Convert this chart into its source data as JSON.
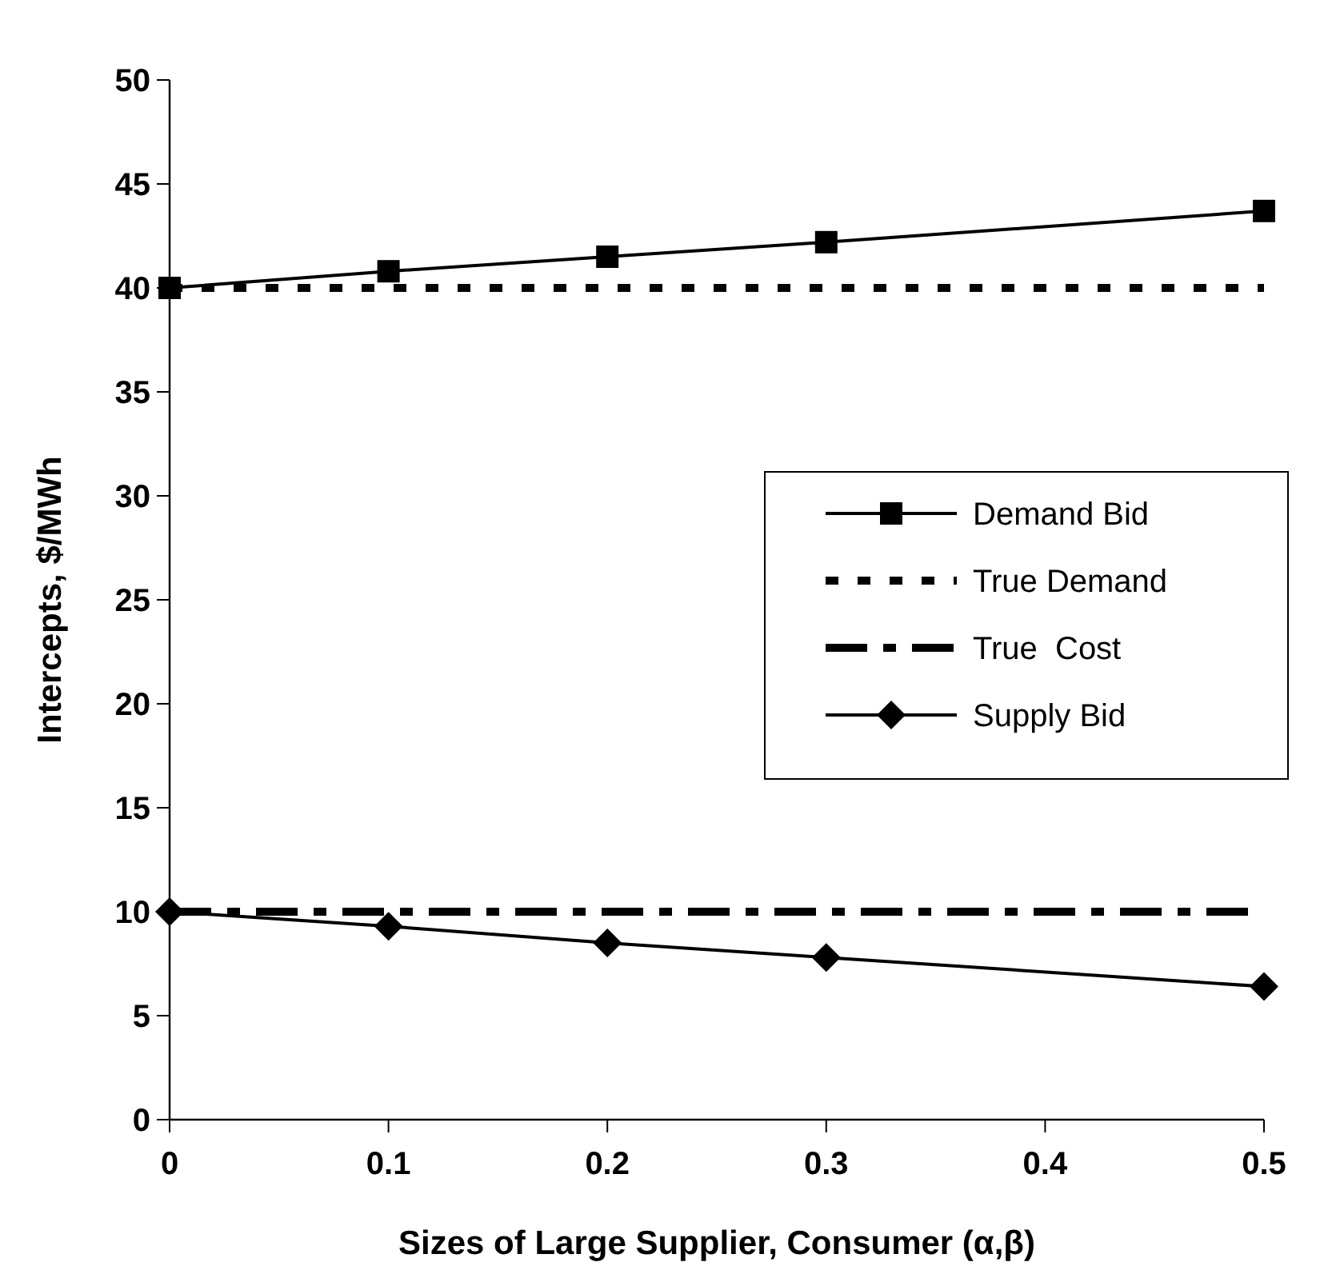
{
  "chart_data": {
    "type": "line",
    "xlabel": "Sizes of Large Supplier, Consumer (α,β)",
    "ylabel": "Intercepts, $/MWh",
    "xlim": [
      0,
      0.5
    ],
    "xticks": [
      0,
      0.1,
      0.2,
      0.3,
      0.4,
      0.5
    ],
    "ylim": [
      0,
      50
    ],
    "yticks": [
      0,
      5,
      10,
      15,
      20,
      25,
      30,
      35,
      40,
      45,
      50
    ],
    "grid": false,
    "legend": "right",
    "series": [
      {
        "name": "Demand Bid",
        "color": "#000000",
        "x": [
          0,
          0.1,
          0.2,
          0.3,
          0.5
        ],
        "values": [
          40,
          40.8,
          41.5,
          42.2,
          43.7
        ],
        "marker": "square",
        "line_style": "solid"
      },
      {
        "name": "True Demand",
        "color": "#000000",
        "x": [
          0,
          0.5
        ],
        "values": [
          40,
          40
        ],
        "line_style": "dotted"
      },
      {
        "name": "True  Cost",
        "color": "#000000",
        "x": [
          0,
          0.5
        ],
        "values": [
          10,
          10
        ],
        "line_style": "dashed"
      },
      {
        "name": "Supply Bid",
        "color": "#000000",
        "x": [
          0,
          0.1,
          0.2,
          0.3,
          0.5
        ],
        "values": [
          10,
          9.3,
          8.5,
          7.8,
          6.4
        ],
        "marker": "diamond",
        "line_style": "solid"
      }
    ]
  }
}
